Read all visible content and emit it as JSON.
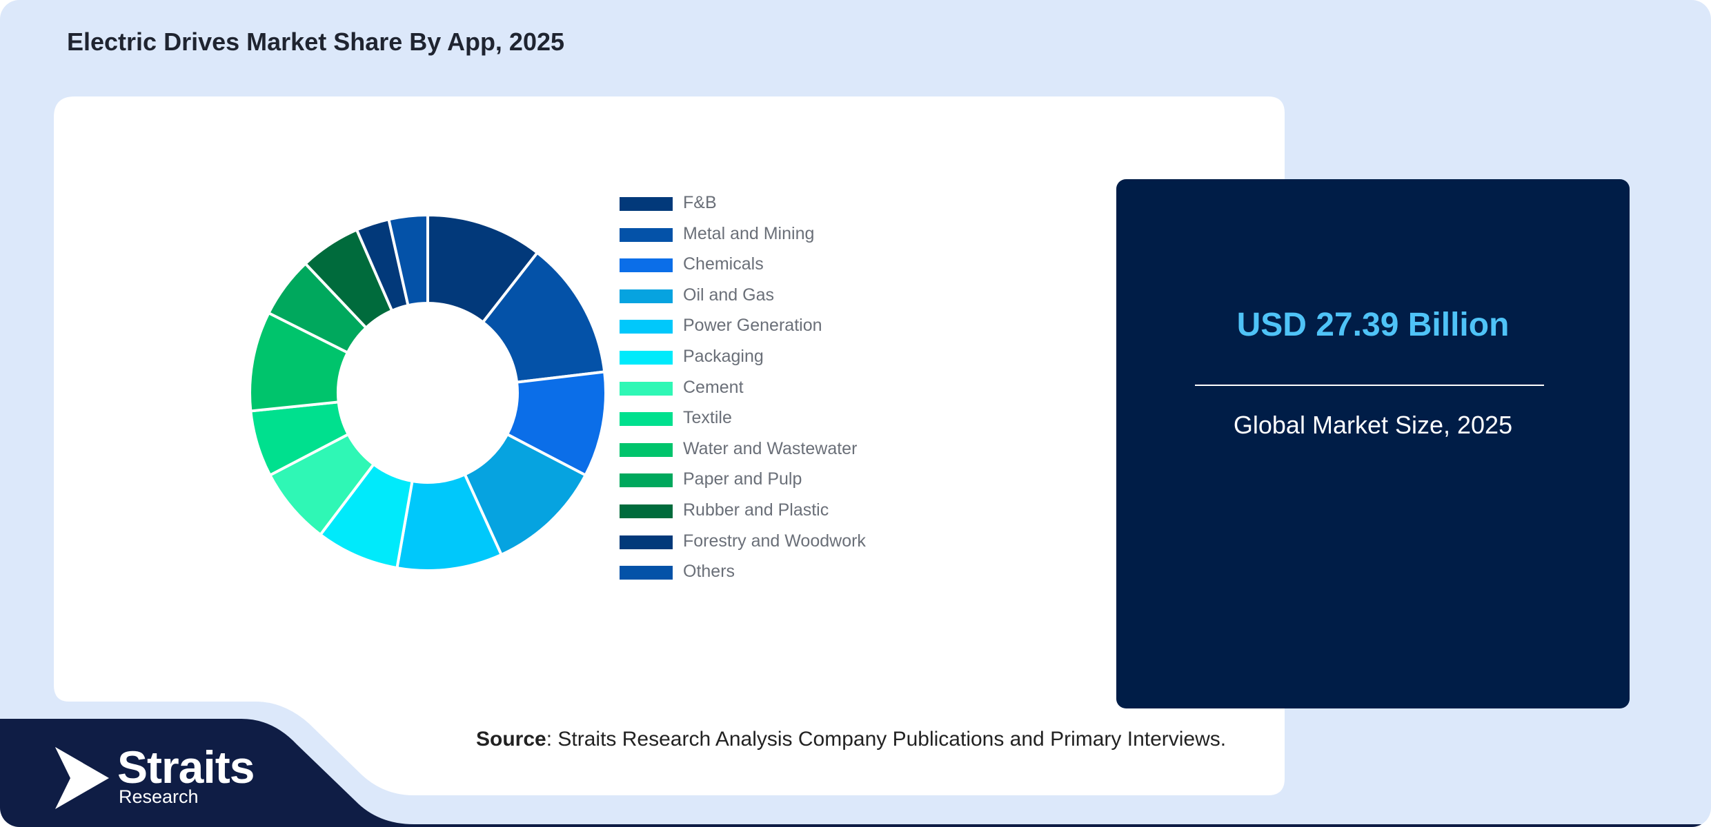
{
  "title": "Electric Drives Market Share By App, 2025",
  "chart_data": {
    "type": "pie",
    "variant": "donut",
    "title": "Electric Drives Market Share By App, 2025",
    "legend_position": "right",
    "categories": [
      "F&B",
      "Metal and Mining",
      "Chemicals",
      "Oil and Gas",
      "Power Generation",
      "Packaging",
      "Cement",
      "Textile",
      "Water and Wastewater",
      "Paper and Pulp",
      "Rubber and Plastic",
      "Forestry and Woodwork",
      "Others"
    ],
    "values": [
      10.5,
      12.5,
      9.5,
      10.5,
      9.5,
      7.5,
      7.0,
      6.0,
      9.0,
      5.5,
      5.5,
      3.0,
      3.5
    ],
    "colors": [
      "#02397a",
      "#0452a8",
      "#0b6ee8",
      "#06a3e0",
      "#00c8fb",
      "#00eafb",
      "#2ff7b5",
      "#00e08e",
      "#00c46c",
      "#00a85d",
      "#006b3c",
      "#02397a",
      "#0452a8"
    ]
  },
  "stat": {
    "value": "USD 27.39 Billion",
    "label": "Global Market Size, 2025"
  },
  "source": {
    "label": "Source",
    "text": ": Straits Research Analysis Company Publications and Primary Interviews."
  },
  "logo": {
    "name": "Straits",
    "sub": "Research",
    "icon": "straits-arrow-icon"
  },
  "colors": {
    "background": "#dce8fa",
    "card": "#ffffff",
    "stat_card": "#001d47",
    "stat_value": "#4fc3f7",
    "logo_band": "#0f1d45"
  }
}
